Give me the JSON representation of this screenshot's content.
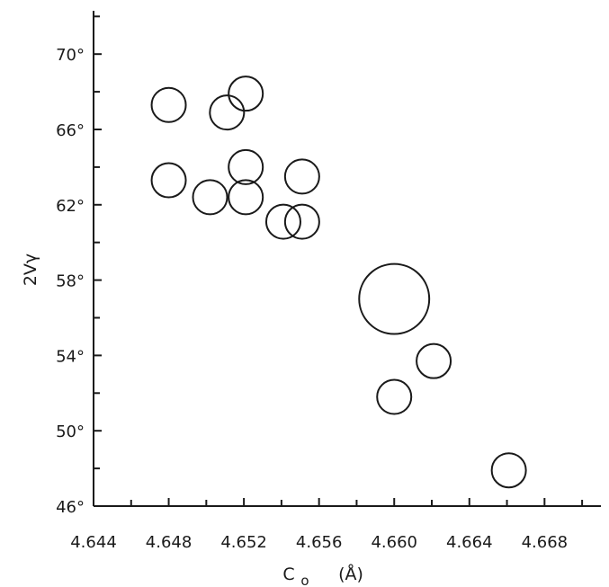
{
  "chart_data": {
    "type": "scatter",
    "title": "",
    "xlabel": "C",
    "xlabel_subscript": "o",
    "xlabel_unit": "(Å)",
    "ylabel": "2Vγ",
    "xlim": [
      4.644,
      4.671
    ],
    "ylim": [
      46,
      72.3
    ],
    "x_ticks": [
      4.644,
      4.648,
      4.652,
      4.656,
      4.66,
      4.664,
      4.668
    ],
    "x_tick_labels": [
      "4.644",
      "4.648",
      "4.652",
      "4.656",
      "4.660",
      "4.664",
      "4.668"
    ],
    "x_minor_ticks": [
      4.646,
      4.65,
      4.654,
      4.658,
      4.662,
      4.666,
      4.67
    ],
    "y_ticks": [
      46,
      50,
      54,
      58,
      62,
      66,
      70
    ],
    "y_tick_labels": [
      "46°",
      "50°",
      "54°",
      "58°",
      "62°",
      "66°",
      "70°"
    ],
    "y_minor_ticks": [
      48,
      52,
      56,
      60,
      64,
      68,
      72
    ],
    "grid": false,
    "legend": "none",
    "marker_style": "open circle, size varies",
    "points": [
      {
        "x": 4.648,
        "y": 67.3,
        "size": 1
      },
      {
        "x": 4.6511,
        "y": 66.9,
        "size": 1
      },
      {
        "x": 4.6521,
        "y": 67.9,
        "size": 1
      },
      {
        "x": 4.648,
        "y": 63.3,
        "size": 1
      },
      {
        "x": 4.6502,
        "y": 62.4,
        "size": 1
      },
      {
        "x": 4.6521,
        "y": 62.4,
        "size": 1
      },
      {
        "x": 4.6521,
        "y": 64.0,
        "size": 1
      },
      {
        "x": 4.6541,
        "y": 61.1,
        "size": 1
      },
      {
        "x": 4.6551,
        "y": 63.5,
        "size": 1
      },
      {
        "x": 4.6551,
        "y": 61.1,
        "size": 1
      },
      {
        "x": 4.66,
        "y": 57.0,
        "size": 2.05
      },
      {
        "x": 4.6621,
        "y": 53.7,
        "size": 1
      },
      {
        "x": 4.66,
        "y": 51.8,
        "size": 1
      },
      {
        "x": 4.6661,
        "y": 47.9,
        "size": 1
      }
    ]
  }
}
